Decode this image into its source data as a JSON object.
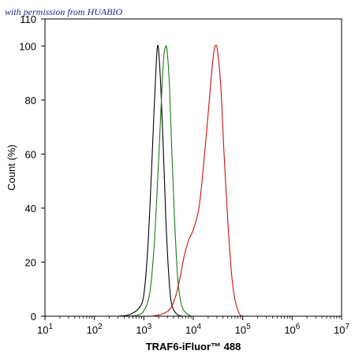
{
  "watermark": "with permission from HUABIO",
  "chart_data": {
    "type": "line",
    "title": "",
    "xlabel": "TRAF6-iFluor™ 488",
    "ylabel": "Count (%)",
    "xscale": "log",
    "xlim": [
      10,
      10000000
    ],
    "ylim": [
      0,
      110
    ],
    "x_ticks": [
      {
        "value": 10,
        "base": "10",
        "exp": "1"
      },
      {
        "value": 100,
        "base": "10",
        "exp": "2"
      },
      {
        "value": 1000,
        "base": "10",
        "exp": "3"
      },
      {
        "value": 10000,
        "base": "10",
        "exp": "4"
      },
      {
        "value": 100000,
        "base": "10",
        "exp": "5"
      },
      {
        "value": 1000000,
        "base": "10",
        "exp": "6"
      },
      {
        "value": 10000000,
        "base": "10",
        "exp": "7"
      }
    ],
    "y_ticks": [
      "0",
      "20",
      "40",
      "60",
      "80",
      "100",
      "110"
    ],
    "grid": false,
    "series": [
      {
        "color": "#000000",
        "points": [
          [
            300,
            0
          ],
          [
            500,
            0.5
          ],
          [
            800,
            3
          ],
          [
            1000,
            8
          ],
          [
            1200,
            25
          ],
          [
            1400,
            50
          ],
          [
            1600,
            75
          ],
          [
            1800,
            95
          ],
          [
            1900,
            100
          ],
          [
            2000,
            98
          ],
          [
            2200,
            85
          ],
          [
            2500,
            60
          ],
          [
            2800,
            35
          ],
          [
            3200,
            15
          ],
          [
            3600,
            5
          ],
          [
            4500,
            1
          ],
          [
            6000,
            0
          ]
        ]
      },
      {
        "color": "#1a7a1a",
        "points": [
          [
            500,
            0
          ],
          [
            900,
            1
          ],
          [
            1300,
            8
          ],
          [
            1600,
            25
          ],
          [
            1900,
            50
          ],
          [
            2200,
            75
          ],
          [
            2500,
            95
          ],
          [
            2800,
            100
          ],
          [
            3000,
            97
          ],
          [
            3300,
            85
          ],
          [
            3700,
            60
          ],
          [
            4200,
            35
          ],
          [
            4800,
            15
          ],
          [
            5500,
            6
          ],
          [
            6500,
            2
          ],
          [
            9000,
            0
          ]
        ]
      },
      {
        "color": "#cc1111",
        "points": [
          [
            1500,
            0
          ],
          [
            2500,
            1
          ],
          [
            3500,
            3
          ],
          [
            4500,
            8
          ],
          [
            5500,
            15
          ],
          [
            6500,
            22
          ],
          [
            8000,
            28
          ],
          [
            10000,
            32
          ],
          [
            13000,
            40
          ],
          [
            16000,
            55
          ],
          [
            20000,
            75
          ],
          [
            25000,
            95
          ],
          [
            28000,
            100
          ],
          [
            31000,
            98
          ],
          [
            36000,
            85
          ],
          [
            42000,
            60
          ],
          [
            50000,
            35
          ],
          [
            60000,
            15
          ],
          [
            70000,
            6
          ],
          [
            85000,
            1
          ],
          [
            100000,
            0
          ]
        ]
      }
    ]
  }
}
